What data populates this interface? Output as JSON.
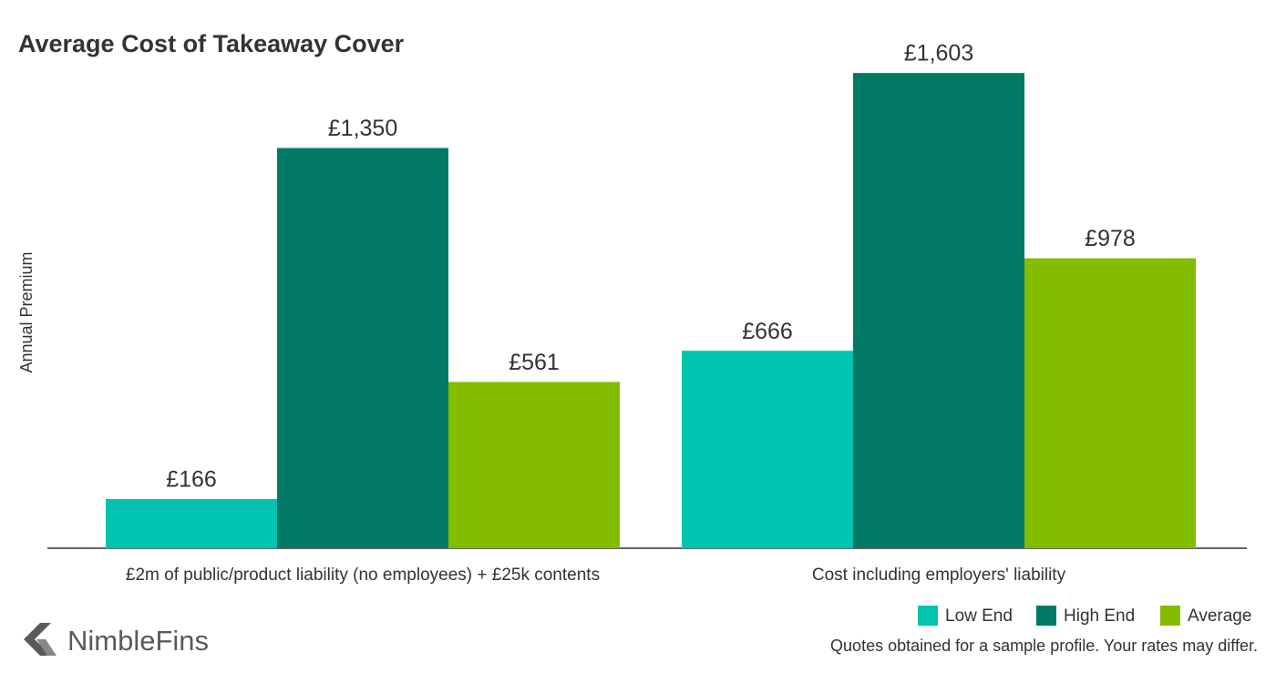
{
  "chart_data": {
    "type": "bar",
    "title": "Average Cost of Takeaway Cover",
    "y_label": "Annual Premium",
    "categories": [
      "£2m of public/product liability (no employees) + £25k contents",
      "Cost including employers' liability"
    ],
    "series": [
      {
        "name": "Low End",
        "color": "#00c4b0",
        "values": [
          166,
          666
        ],
        "value_labels": [
          "£166",
          "£666"
        ]
      },
      {
        "name": "High End",
        "color": "#007a64",
        "values": [
          1350,
          1603
        ],
        "value_labels": [
          "£1,350",
          "£1,603"
        ]
      },
      {
        "name": "Average",
        "color": "#84bc00",
        "values": [
          561,
          978
        ],
        "value_labels": [
          "£561",
          "£978"
        ]
      }
    ],
    "ylim": [
      0,
      1800
    ],
    "legend": "bottom-right",
    "note": "Quotes obtained for a sample profile. Your rates may differ."
  },
  "brand": "NimbleFins"
}
